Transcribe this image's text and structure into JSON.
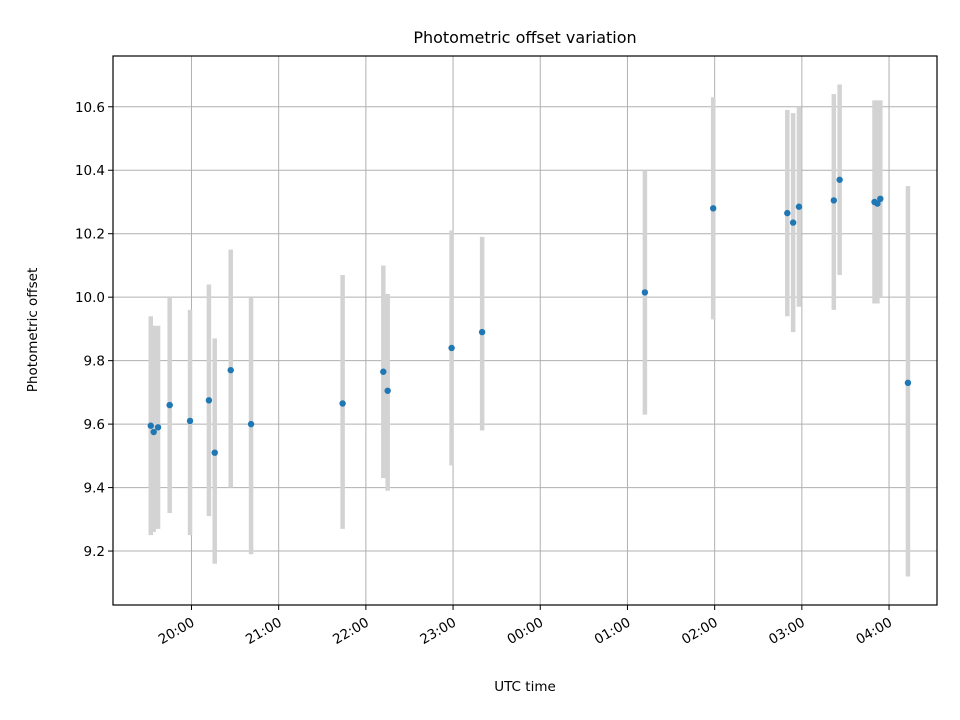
{
  "chart_data": {
    "type": "scatter",
    "title": "Photometric offset variation",
    "xlabel": "UTC time",
    "ylabel": "Photometric offset",
    "grid": true,
    "x_format": "HH:MM",
    "xlim": [
      "19:06",
      "04:33"
    ],
    "ylim": [
      9.03,
      10.76
    ],
    "x_ticks": [
      "20:00",
      "21:00",
      "22:00",
      "23:00",
      "00:00",
      "01:00",
      "02:00",
      "03:00",
      "04:00"
    ],
    "y_ticks": [
      9.2,
      9.4,
      9.6,
      9.8,
      10.0,
      10.2,
      10.4,
      10.6
    ],
    "y_tick_labels": [
      "9.2",
      "9.4",
      "9.6",
      "9.8",
      "10.0",
      "10.2",
      "10.4",
      "10.6"
    ],
    "point_color": "#1f77b4",
    "errorbar_color": "#d3d3d3",
    "points": [
      {
        "t": "19:32",
        "y": 9.595,
        "lo": 9.25,
        "hi": 9.94
      },
      {
        "t": "19:34",
        "y": 9.575,
        "lo": 9.26,
        "hi": 9.91
      },
      {
        "t": "19:37",
        "y": 9.59,
        "lo": 9.27,
        "hi": 9.91
      },
      {
        "t": "19:45",
        "y": 9.66,
        "lo": 9.32,
        "hi": 10.0
      },
      {
        "t": "19:59",
        "y": 9.61,
        "lo": 9.25,
        "hi": 9.96
      },
      {
        "t": "20:12",
        "y": 9.675,
        "lo": 9.31,
        "hi": 10.04
      },
      {
        "t": "20:16",
        "y": 9.51,
        "lo": 9.16,
        "hi": 9.87
      },
      {
        "t": "20:27",
        "y": 9.77,
        "lo": 9.4,
        "hi": 10.15
      },
      {
        "t": "20:41",
        "y": 9.6,
        "lo": 9.19,
        "hi": 10.0
      },
      {
        "t": "21:44",
        "y": 9.665,
        "lo": 9.27,
        "hi": 10.07
      },
      {
        "t": "22:12",
        "y": 9.765,
        "lo": 9.43,
        "hi": 10.1
      },
      {
        "t": "22:15",
        "y": 9.705,
        "lo": 9.39,
        "hi": 10.01
      },
      {
        "t": "22:59",
        "y": 9.84,
        "lo": 9.47,
        "hi": 10.21
      },
      {
        "t": "23:20",
        "y": 9.89,
        "lo": 9.58,
        "hi": 10.19
      },
      {
        "t": "01:12",
        "y": 10.015,
        "lo": 9.63,
        "hi": 10.4
      },
      {
        "t": "01:59",
        "y": 10.28,
        "lo": 9.93,
        "hi": 10.63
      },
      {
        "t": "02:50",
        "y": 10.265,
        "lo": 9.94,
        "hi": 10.59
      },
      {
        "t": "02:54",
        "y": 10.235,
        "lo": 9.89,
        "hi": 10.58
      },
      {
        "t": "02:58",
        "y": 10.285,
        "lo": 9.97,
        "hi": 10.6
      },
      {
        "t": "03:22",
        "y": 10.305,
        "lo": 9.96,
        "hi": 10.64
      },
      {
        "t": "03:26",
        "y": 10.37,
        "lo": 10.07,
        "hi": 10.67
      },
      {
        "t": "03:50",
        "y": 10.3,
        "lo": 9.98,
        "hi": 10.62
      },
      {
        "t": "03:52",
        "y": 10.295,
        "lo": 9.98,
        "hi": 10.62
      },
      {
        "t": "03:54",
        "y": 10.31,
        "lo": 10.0,
        "hi": 10.62
      },
      {
        "t": "04:13",
        "y": 9.73,
        "lo": 9.12,
        "hi": 10.35
      }
    ]
  }
}
